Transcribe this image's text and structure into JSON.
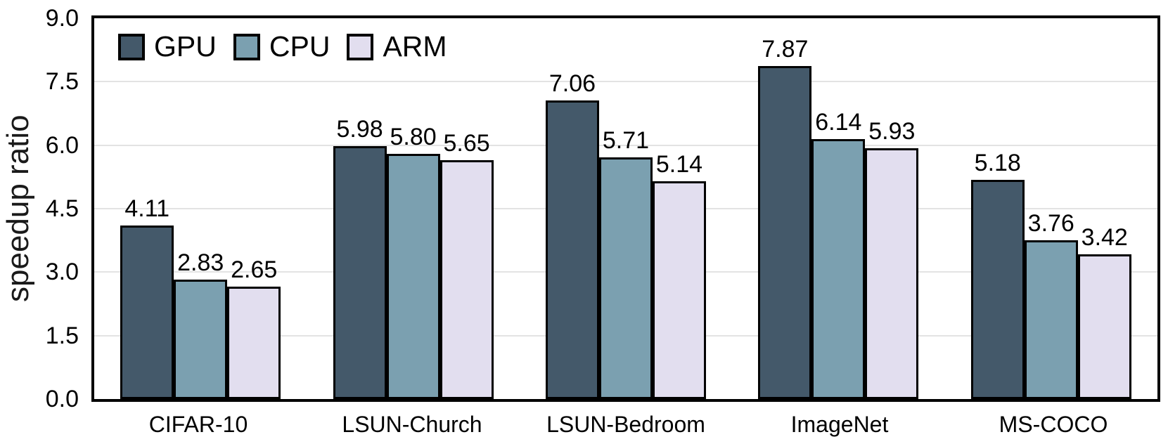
{
  "chart_data": {
    "type": "bar",
    "title": "",
    "xlabel": "",
    "ylabel": "speedup ratio",
    "ylim": [
      0,
      9
    ],
    "yticks": [
      0.0,
      1.5,
      3.0,
      4.5,
      6.0,
      7.5,
      9.0
    ],
    "grid": "horizontal",
    "gridline_color": "#e3e3e3",
    "bar_outline_color": "#000000",
    "plot_border_color": "#000000",
    "legend_position": "top-left-inside",
    "categories": [
      "CIFAR-10",
      "LSUN-Church",
      "LSUN-Bedroom",
      "ImageNet",
      "MS-COCO"
    ],
    "series": [
      {
        "name": "GPU",
        "color": "#44596a",
        "values": [
          4.11,
          5.98,
          7.06,
          7.87,
          5.18
        ]
      },
      {
        "name": "CPU",
        "color": "#7ba0b0",
        "values": [
          2.83,
          5.8,
          5.71,
          6.14,
          3.76
        ]
      },
      {
        "name": "ARM",
        "color": "#e2deef",
        "values": [
          2.65,
          5.65,
          5.14,
          5.93,
          3.42
        ]
      }
    ],
    "value_label_decimals": 2
  }
}
